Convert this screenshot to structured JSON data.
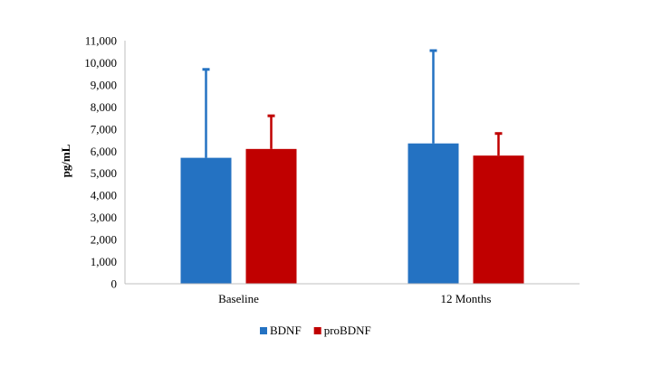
{
  "chart_data": {
    "type": "bar",
    "title": "",
    "xlabel": "",
    "ylabel": "pg/mL",
    "ylim": [
      0,
      11000
    ],
    "yticks": [
      "0",
      "1,000",
      "2,000",
      "3,000",
      "4,000",
      "5,000",
      "6,000",
      "7,000",
      "8,000",
      "9,000",
      "10,000",
      "11,000"
    ],
    "categories": [
      "Baseline",
      "12 Months"
    ],
    "series": [
      {
        "name": "BDNF",
        "color": "#2472c2",
        "values": [
          5700,
          6350
        ],
        "error_upper": [
          9700,
          10550
        ]
      },
      {
        "name": "proBDNF",
        "color": "#c00000",
        "values": [
          6100,
          5800
        ],
        "error_upper": [
          7600,
          6800
        ]
      }
    ],
    "grid": false,
    "legend": "bottom-center",
    "error_bars": "upper-only"
  }
}
